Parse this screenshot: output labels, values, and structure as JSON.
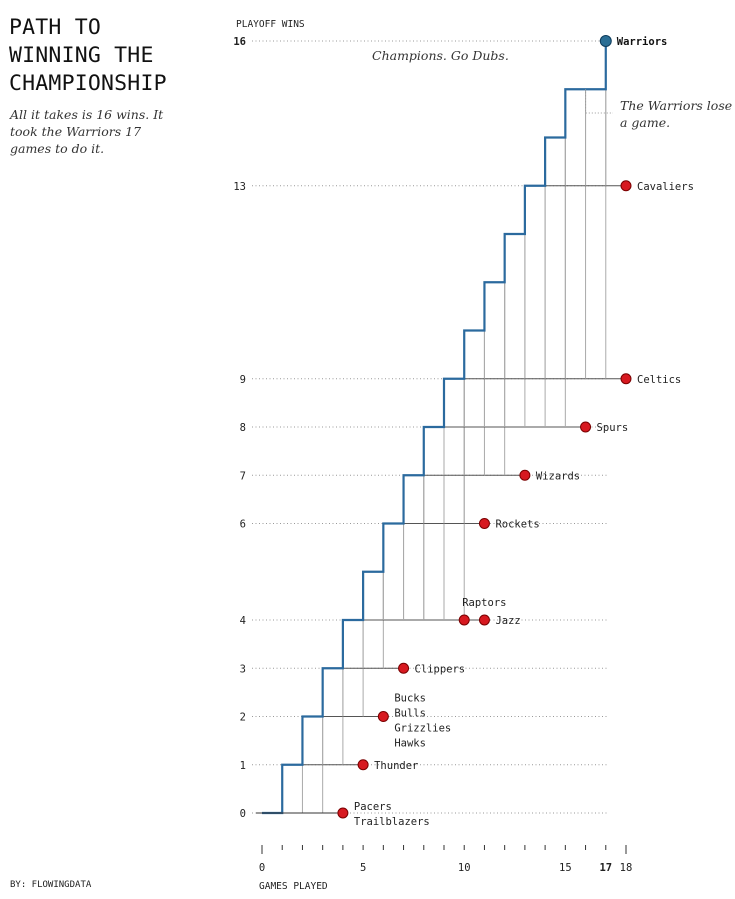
{
  "title": "PATH TO\nWINNING THE\nCHAMPIONSHIP",
  "subtitle": "All it takes is 16 wins. It took the Warriors 17 games to do it.",
  "credit": "BY: FLOWINGDATA",
  "colors": {
    "warriors_line": "#2b6a9e",
    "warriors_dot": "#2a6e95",
    "opponent_dot": "#d71920",
    "opponent_line": "#555555",
    "faint_line": "#aaaaaa",
    "grid_dots": "#999999"
  },
  "chart_data": {
    "type": "line",
    "xlabel": "GAMES PLAYED",
    "ylabel": "PLAYOFF WINS",
    "xlim": [
      0,
      18
    ],
    "ylim": [
      0,
      16
    ],
    "x_ticks": [
      0,
      5,
      10,
      15,
      17,
      18
    ],
    "y_ticks": [
      0,
      1,
      2,
      3,
      4,
      6,
      7,
      8,
      9,
      13,
      16
    ],
    "bold_x_tick": 17,
    "bold_y_tick": 16,
    "warriors": {
      "name": "Warriors",
      "games": [
        1,
        2,
        3,
        4,
        5,
        6,
        7,
        8,
        9,
        10,
        11,
        12,
        13,
        14,
        15,
        16,
        17
      ],
      "wins": [
        1,
        2,
        3,
        4,
        5,
        6,
        7,
        8,
        9,
        10,
        11,
        12,
        13,
        14,
        15,
        15,
        16
      ],
      "end_label": "Warriors"
    },
    "teams": [
      {
        "label": "Pacers\nTrailblazers",
        "games": 4,
        "wins": 0
      },
      {
        "label": "Thunder",
        "games": 5,
        "wins": 1
      },
      {
        "label": "Bucks\nBulls\nGrizzlies\nHawks",
        "games": 6,
        "wins": 2
      },
      {
        "label": "Clippers",
        "games": 7,
        "wins": 3
      },
      {
        "label": "Raptors",
        "games": 10,
        "wins": 4
      },
      {
        "label": "Jazz",
        "games": 11,
        "wins": 4
      },
      {
        "label": "Rockets",
        "games": 11,
        "wins": 6
      },
      {
        "label": "Wizards",
        "games": 13,
        "wins": 7
      },
      {
        "label": "Spurs",
        "games": 16,
        "wins": 8
      },
      {
        "label": "Celtics",
        "games": 18,
        "wins": 9
      },
      {
        "label": "Cavaliers",
        "games": 18,
        "wins": 13
      }
    ],
    "annotations": [
      {
        "text": "Champions. Go Dubs.",
        "x": 8.5,
        "y": 16
      },
      {
        "text": "The Warriors lose\na game.",
        "x": 16,
        "y": 15
      }
    ]
  }
}
